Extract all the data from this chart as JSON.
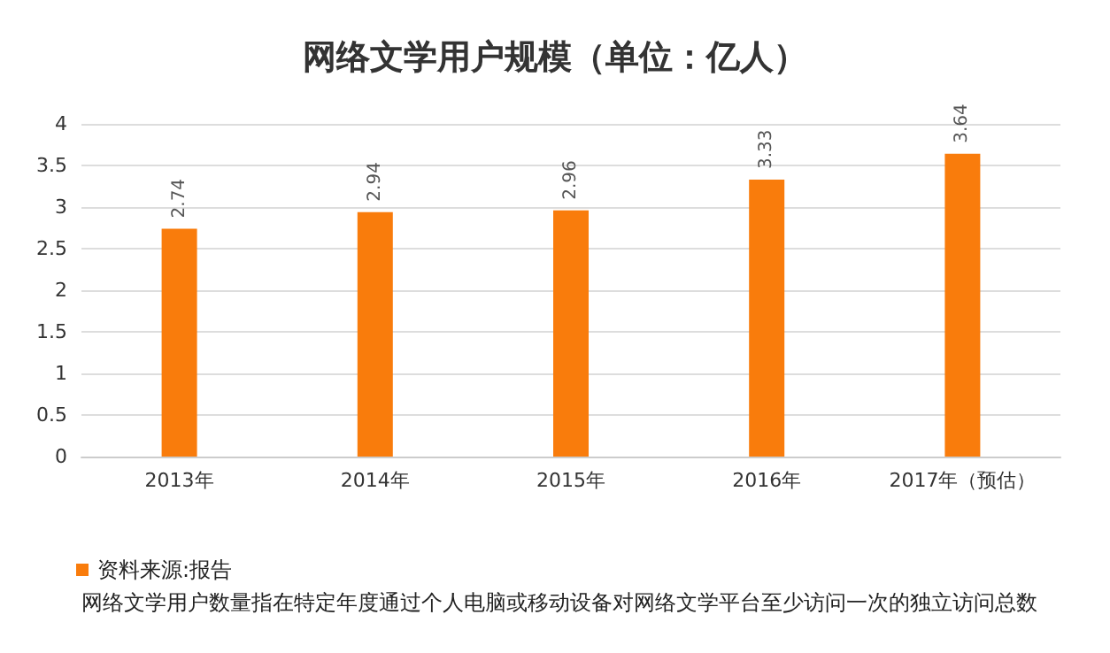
{
  "chart_data": {
    "type": "bar",
    "title": "网络文学用户规模（单位：亿人）",
    "categories": [
      "2013年",
      "2014年",
      "2015年",
      "2016年",
      "2017年（预估）"
    ],
    "series": [
      {
        "name": "资料来源:报告",
        "color": "#f97c0c",
        "values": [
          2.74,
          2.94,
          2.96,
          3.33,
          3.64
        ]
      }
    ],
    "ylim": [
      0,
      4
    ],
    "yticks": [
      0,
      0.5,
      1,
      1.5,
      2,
      2.5,
      3,
      3.5,
      4
    ],
    "grid": "y",
    "legend": "bottom left",
    "data_labels": true,
    "annotations": [
      "网络文学用户数量指在特定年度通过个人电脑或移动设备对网络文学平台至少访问一次的独立访问总数"
    ]
  }
}
